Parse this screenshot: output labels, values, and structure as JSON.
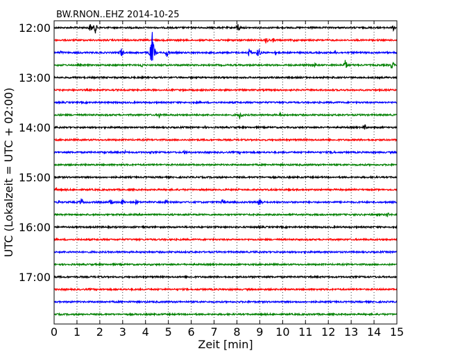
{
  "chart_data": {
    "type": "line",
    "title": "BW.RNON..EHZ 2014-10-25",
    "xlabel": "Zeit  [min]",
    "ylabel": "UTC (Lokalzeit = UTC + 02:00)",
    "xlim": [
      0,
      15
    ],
    "x_ticks": [
      "0",
      "1",
      "2",
      "3",
      "4",
      "5",
      "6",
      "7",
      "8",
      "9",
      "10",
      "11",
      "12",
      "13",
      "14",
      "15"
    ],
    "y_ticks": [
      "12:00",
      "13:00",
      "14:00",
      "15:00",
      "16:00",
      "17:00"
    ],
    "grid": "vertical-dotted",
    "row_interval_min": 15,
    "colors": [
      "#000000",
      "#ff0000",
      "#0000ff",
      "#008000"
    ],
    "series": [
      {
        "start": "12:00",
        "color": "#000000",
        "events": [
          [
            1.6,
            8
          ],
          [
            1.8,
            9
          ],
          [
            8.05,
            8
          ],
          [
            14.85,
            5
          ]
        ]
      },
      {
        "start": "12:15",
        "color": "#ff0000",
        "events": [
          [
            9.3,
            8
          ],
          [
            9.6,
            4
          ],
          [
            10.5,
            3
          ]
        ]
      },
      {
        "start": "12:30",
        "color": "#0000ff",
        "events": [
          [
            0.3,
            4
          ],
          [
            2.95,
            8
          ],
          [
            4.3,
            32
          ],
          [
            4.95,
            8
          ],
          [
            8.55,
            8
          ],
          [
            8.95,
            9
          ],
          [
            9.7,
            4
          ],
          [
            12.3,
            3
          ]
        ]
      },
      {
        "start": "12:45",
        "color": "#008000",
        "events": [
          [
            3.85,
            4
          ],
          [
            11.4,
            6
          ],
          [
            12.75,
            9
          ],
          [
            14.8,
            7
          ]
        ]
      },
      {
        "start": "13:00",
        "color": "#000000",
        "events": []
      },
      {
        "start": "13:15",
        "color": "#ff0000",
        "events": []
      },
      {
        "start": "13:30",
        "color": "#0000ff",
        "events": [
          [
            12.5,
            2
          ]
        ]
      },
      {
        "start": "13:45",
        "color": "#008000",
        "events": [
          [
            4.6,
            4
          ],
          [
            8.15,
            8
          ],
          [
            9.9,
            4
          ]
        ]
      },
      {
        "start": "14:00",
        "color": "#000000",
        "events": [
          [
            13.6,
            5
          ],
          [
            6.6,
            2
          ]
        ]
      },
      {
        "start": "14:15",
        "color": "#ff0000",
        "events": []
      },
      {
        "start": "14:30",
        "color": "#0000ff",
        "events": [
          [
            2.2,
            3
          ],
          [
            3.1,
            3
          ],
          [
            4.2,
            3
          ],
          [
            5.75,
            5
          ],
          [
            8.1,
            3
          ],
          [
            12.2,
            4
          ]
        ]
      },
      {
        "start": "14:45",
        "color": "#008000",
        "events": []
      },
      {
        "start": "15:00",
        "color": "#000000",
        "events": [
          [
            9.0,
            3
          ]
        ]
      },
      {
        "start": "15:15",
        "color": "#ff0000",
        "events": [
          [
            0.1,
            3
          ]
        ]
      },
      {
        "start": "15:30",
        "color": "#0000ff",
        "events": [
          [
            0.2,
            3
          ],
          [
            1.2,
            7
          ],
          [
            2.5,
            7
          ],
          [
            3.0,
            6
          ],
          [
            3.6,
            5
          ],
          [
            4.9,
            5
          ],
          [
            7.4,
            6
          ],
          [
            9.0,
            11
          ]
        ]
      },
      {
        "start": "15:45",
        "color": "#008000",
        "events": [
          [
            14.6,
            5
          ]
        ]
      },
      {
        "start": "16:00",
        "color": "#000000",
        "events": [
          [
            3.9,
            3
          ],
          [
            9.0,
            3
          ]
        ]
      },
      {
        "start": "16:15",
        "color": "#ff0000",
        "events": []
      },
      {
        "start": "16:30",
        "color": "#0000ff",
        "events": []
      },
      {
        "start": "16:45",
        "color": "#008000",
        "events": []
      },
      {
        "start": "17:00",
        "color": "#000000",
        "events": []
      },
      {
        "start": "17:15",
        "color": "#ff0000",
        "events": []
      },
      {
        "start": "17:30",
        "color": "#0000ff",
        "events": []
      },
      {
        "start": "17:45",
        "color": "#008000",
        "events": []
      }
    ]
  }
}
